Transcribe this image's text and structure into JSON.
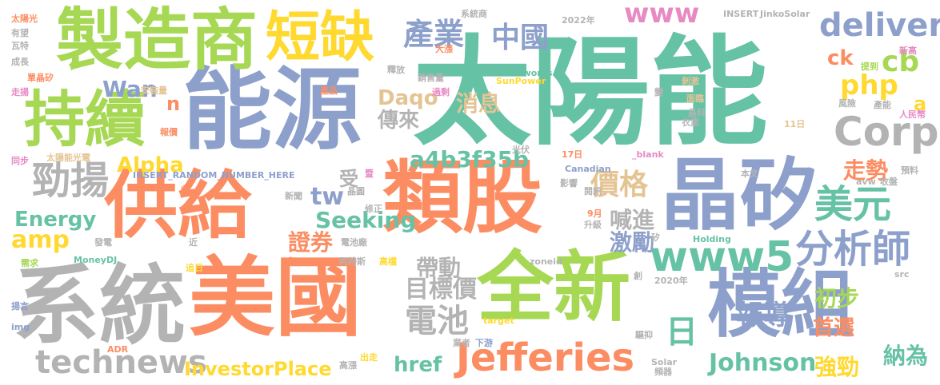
{
  "palette": {
    "green": "#66c2a5",
    "orange": "#fc8d62",
    "blue": "#8da0cb",
    "pink": "#e78ac3",
    "lime": "#a6d854",
    "yellow": "#ffd92f",
    "tan": "#e5c494",
    "gray": "#b3b3b3"
  },
  "words": {
    "w001": "太陽能",
    "w002": "能源",
    "w003": "系統",
    "w004": "美國",
    "w005": "全新",
    "w006": "類股",
    "w007": "晶矽",
    "w008": "供給",
    "w009": "模組",
    "w010": "製造商",
    "w011": "持續",
    "w012": "短缺",
    "w013": "technews",
    "w014": "Jefferies",
    "w015": "Corp",
    "w016": "delivery",
    "w017": "www5",
    "w018": "分析師",
    "w019": "美元",
    "w020": "勁揚",
    "w021": "產業",
    "w022": "中國",
    "w023": "www",
    "w024": "a4b3f35b",
    "w025": "php",
    "w026": "cb",
    "w027": "日",
    "w028": "InvestorPlace",
    "w029": "Johnson",
    "w030": "電池",
    "w031": "目標價",
    "w032": "帶動",
    "w033": "價格",
    "w034": "Seeking",
    "w035": "Energy",
    "w036": "amp",
    "w037": "Alpha",
    "w038": "Daqo",
    "w039": "消息",
    "w040": "傳來",
    "w041": "Wan",
    "w042": "tw",
    "w043": "受",
    "w044": "證券",
    "w045": "喊進",
    "w046": "激勵",
    "w047": "報導",
    "w048": "初步",
    "w049": "首選",
    "w050": "強勁",
    "w051": "納為",
    "w052": "走勢",
    "w053": "href",
    "w054": "ck",
    "w055": "n",
    "w056": "a",
    "w057": "太陽光",
    "w058": "有望",
    "w059": "瓦特",
    "w060": "成長",
    "w061": "單晶矽",
    "w062": "走揚",
    "w063": "產品",
    "w064": "安裝量",
    "w065": "報價",
    "w066": "太陽能光電",
    "w067": "同步",
    "w068": "INSERT_RANDOM_NUMBER_HERE",
    "w069": "需求",
    "w070": "MoneyDJ",
    "w071": "發電",
    "w072": "近",
    "w073": "成",
    "w074": "追日",
    "w075": "揚言",
    "w076": "img",
    "w077": "ADR",
    "w078": "高漲",
    "w079": "出走",
    "w080": "業者",
    "w081": "target",
    "w082": "下游",
    "w083": "釋放",
    "w084": "銷售量",
    "w085": "大漲",
    "w086": "過剩",
    "w087": "系統商",
    "w088": "2022年",
    "w089": "Sunworks",
    "w090": "SunPower",
    "w091": "光伏",
    "w092": "17日",
    "w093": "Canadian",
    "w094": "_blank",
    "w095": "INSERT",
    "w096": "JinkoSolar",
    "w097": "剝激",
    "w098": "變",
    "w099": "提到",
    "w100": "新高",
    "w101": "面臨",
    "w102": "晶科",
    "w103": "風險",
    "w104": "衣業",
    "w105": "產能",
    "w106": "人民幣",
    "w107": "11日",
    "w108": "本文",
    "w109": "預料",
    "w110": "avw",
    "w111": "收盤",
    "w112": "影響",
    "w113": "閱訊",
    "w114": "新聞",
    "w115": "晶圓",
    "w116": "修正",
    "w117": "電池廠",
    "w118": "阿特斯",
    "w119": "高檔",
    "w120": "zoneid",
    "w121": "Holding",
    "w122": "9月",
    "w123": "升級",
    "w124": "矽",
    "w125": "創",
    "w126": "2020年",
    "w127": "src",
    "w128": "驅抑",
    "w129": "Solar",
    "w130": "頻器",
    "w131": "收",
    "w132": "暨"
  }
}
